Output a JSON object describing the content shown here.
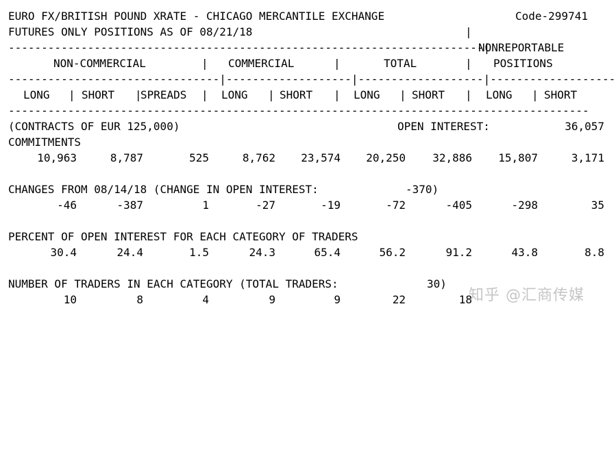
{
  "header": {
    "title": "EURO FX/BRITISH POUND XRATE - CHICAGO MERCANTILE EXCHANGE",
    "code": "Code-299741",
    "subtitle": "FUTURES ONLY POSITIONS AS OF 08/21/18"
  },
  "groups": {
    "noncommercial": "NON-COMMERCIAL",
    "commercial": "COMMERCIAL",
    "total": "TOTAL",
    "nonreportable_1": "NONREPORTABLE",
    "nonreportable_2": "POSITIONS"
  },
  "columns": [
    "LONG",
    "SHORT",
    "SPREADS",
    "LONG",
    "SHORT",
    "LONG",
    "SHORT",
    "LONG",
    "SHORT"
  ],
  "contracts_label": "(CONTRACTS OF EUR 125,000)",
  "open_interest_label": "OPEN INTEREST:",
  "open_interest_value": "36,057",
  "sections": {
    "commitments": {
      "label": "COMMITMENTS",
      "values": [
        "10,963",
        "8,787",
        "525",
        "8,762",
        "23,574",
        "20,250",
        "32,886",
        "15,807",
        "3,171"
      ]
    },
    "changes": {
      "label": "CHANGES FROM 08/14/18 (CHANGE IN OPEN INTEREST:",
      "change_value": "-370)",
      "values": [
        "-46",
        "-387",
        "1",
        "-27",
        "-19",
        "-72",
        "-405",
        "-298",
        "35"
      ]
    },
    "percent": {
      "label": "PERCENT OF OPEN INTEREST FOR EACH CATEGORY OF TRADERS",
      "values": [
        "30.4",
        "24.4",
        "1.5",
        "24.3",
        "65.4",
        "56.2",
        "91.2",
        "43.8",
        "8.8"
      ]
    },
    "traders": {
      "label": "NUMBER OF TRADERS IN EACH CATEGORY (TOTAL TRADERS:",
      "total_value": "30)",
      "values": [
        "10",
        "8",
        "4",
        "9",
        "9",
        "22",
        "18",
        "",
        ""
      ]
    }
  },
  "watermark": "知乎 @汇商传媒"
}
